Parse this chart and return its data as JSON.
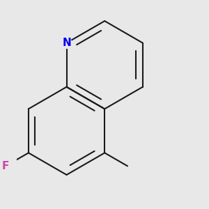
{
  "background_color": "#e8e8e8",
  "bond_color": "#1a1a1a",
  "bond_width": 1.5,
  "N_color": "#0000ee",
  "F_color": "#cc44aa",
  "N_label": "N",
  "F_label": "F",
  "label_fontsize": 11,
  "figsize": [
    3.0,
    3.0
  ],
  "dpi": 100
}
